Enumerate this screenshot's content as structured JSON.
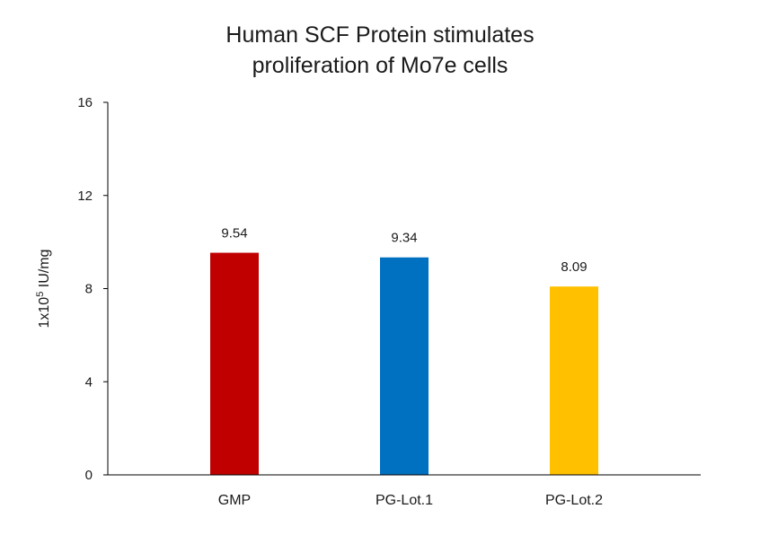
{
  "chart_data": {
    "type": "bar",
    "title_lines": [
      "Human SCF Protein stimulates",
      "proliferation of Mo7e cells"
    ],
    "ylabel_base": "1x10",
    "ylabel_sup": "5",
    "ylabel_unit": " IU/mg",
    "xlabel": "",
    "categories": [
      "GMP",
      "PG-Lot.1",
      "PG-Lot.2"
    ],
    "values": [
      9.54,
      9.34,
      8.09
    ],
    "data_labels": [
      "9.54",
      "9.34",
      "8.09"
    ],
    "colors": [
      "#C00000",
      "#0070C0",
      "#FFC000"
    ],
    "ylim": [
      0,
      16
    ],
    "yticks": [
      0,
      4,
      8,
      12,
      16
    ],
    "grid": false,
    "legend": "none"
  }
}
